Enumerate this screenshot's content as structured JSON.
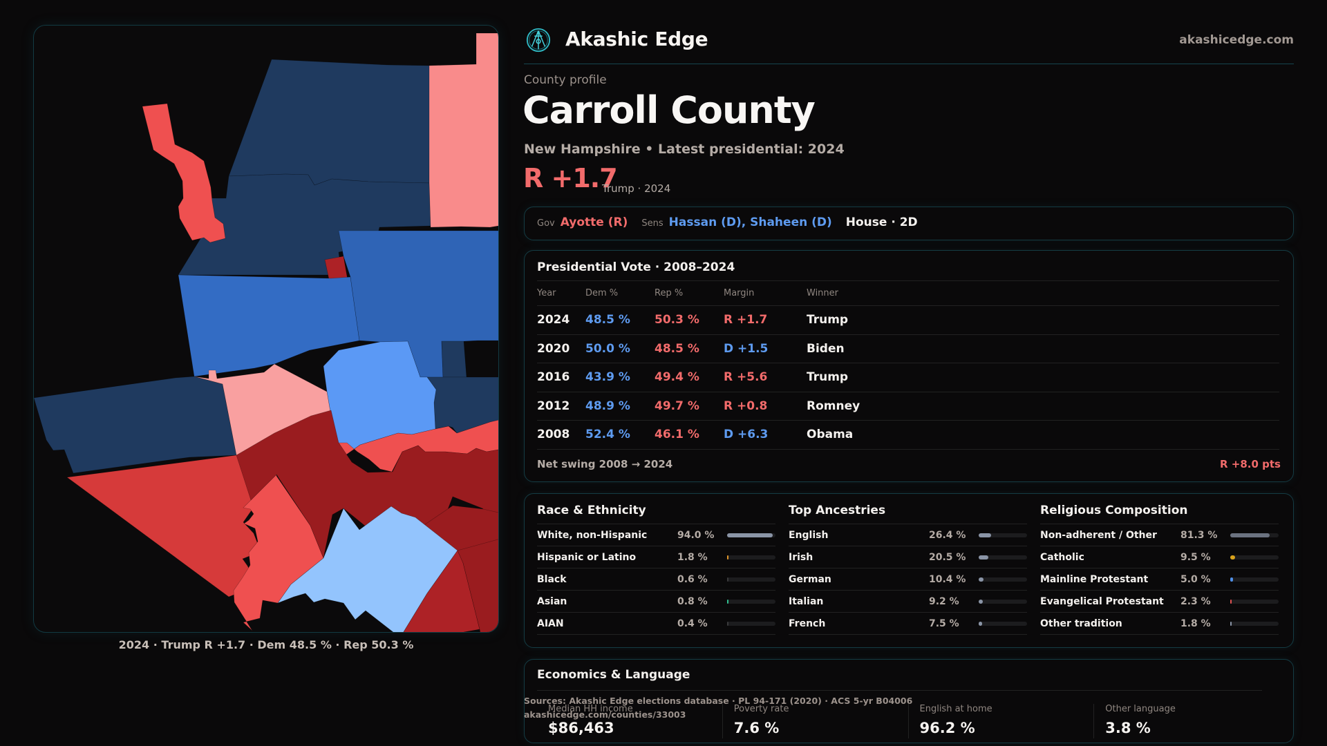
{
  "brand": {
    "name": "Akashic Edge",
    "site": "akashicedge.com",
    "logo_icon": "compass-seal-icon"
  },
  "profile": {
    "eyebrow": "County profile",
    "county": "Carroll County",
    "subtitle": "New Hampshire • Latest presidential: 2024",
    "margin": "R +1.7",
    "margin_note": "Trump · 2024"
  },
  "officials": {
    "gov_label": "Gov",
    "gov_value": "Ayotte (R)",
    "sens_label": "Sens",
    "sens_value": "Hassan (D), Shaheen (D)",
    "house_value": "House · 2D"
  },
  "presidential": {
    "title": "Presidential Vote · 2008–2024",
    "columns": [
      "Year",
      "Dem %",
      "Rep %",
      "Margin",
      "Winner"
    ],
    "rows": [
      {
        "year": "2024",
        "dem": "48.5 %",
        "rep": "50.3 %",
        "margin": "R +1.7",
        "party": "R",
        "winner": "Trump"
      },
      {
        "year": "2020",
        "dem": "50.0 %",
        "rep": "48.5 %",
        "margin": "D +1.5",
        "party": "D",
        "winner": "Biden"
      },
      {
        "year": "2016",
        "dem": "43.9 %",
        "rep": "49.4 %",
        "margin": "R +5.6",
        "party": "R",
        "winner": "Trump"
      },
      {
        "year": "2012",
        "dem": "48.9 %",
        "rep": "49.7 %",
        "margin": "R +0.8",
        "party": "R",
        "winner": "Romney"
      },
      {
        "year": "2008",
        "dem": "52.4 %",
        "rep": "46.1 %",
        "margin": "D +6.3",
        "party": "D",
        "winner": "Obama"
      }
    ],
    "net_swing_label": "Net swing 2008 → 2024",
    "net_swing_value": "R +8.0 pts"
  },
  "demographics": {
    "race": {
      "title": "Race & Ethnicity",
      "rows": [
        {
          "name": "White, non-Hispanic",
          "pct": "94.0 %",
          "value": 94.0,
          "color": "#8a94a6"
        },
        {
          "name": "Hispanic or Latino",
          "pct": "1.8 %",
          "value": 1.8,
          "color": "#e0962a"
        },
        {
          "name": "Black",
          "pct": "0.6 %",
          "value": 0.6,
          "color": "#3a3a3c"
        },
        {
          "name": "Asian",
          "pct": "0.8 %",
          "value": 0.8,
          "color": "#2fbf8f"
        },
        {
          "name": "AIAN",
          "pct": "0.4 %",
          "value": 0.4,
          "color": "#3a3a3c"
        }
      ]
    },
    "ancestry": {
      "title": "Top Ancestries",
      "rows": [
        {
          "name": "English",
          "pct": "26.4 %",
          "value": 26.4,
          "color": "#8a94a6"
        },
        {
          "name": "Irish",
          "pct": "20.5 %",
          "value": 20.5,
          "color": "#8a94a6"
        },
        {
          "name": "German",
          "pct": "10.4 %",
          "value": 10.4,
          "color": "#8a94a6"
        },
        {
          "name": "Italian",
          "pct": "9.2 %",
          "value": 9.2,
          "color": "#8a94a6"
        },
        {
          "name": "French",
          "pct": "7.5 %",
          "value": 7.5,
          "color": "#8a94a6"
        }
      ]
    },
    "religion": {
      "title": "Religious Composition",
      "rows": [
        {
          "name": "Non-adherent / Other",
          "pct": "81.3 %",
          "value": 81.3,
          "color": "#6b7280"
        },
        {
          "name": "Catholic",
          "pct": "9.5 %",
          "value": 9.5,
          "color": "#d9a21b"
        },
        {
          "name": "Mainline Protestant",
          "pct": "5.0 %",
          "value": 5.0,
          "color": "#4f8fe6"
        },
        {
          "name": "Evangelical Protestant",
          "pct": "2.3 %",
          "value": 2.3,
          "color": "#e05252"
        },
        {
          "name": "Other tradition",
          "pct": "1.8 %",
          "value": 1.8,
          "color": "#8a94a6"
        }
      ]
    }
  },
  "economics": {
    "title": "Economics & Language",
    "stats": [
      {
        "label": "Median HH income",
        "value": "$86,463"
      },
      {
        "label": "Poverty rate",
        "value": "7.6 %"
      },
      {
        "label": "English at home",
        "value": "96.2 %"
      },
      {
        "label": "Other language",
        "value": "3.8 %"
      }
    ]
  },
  "sources": {
    "line1": "Sources: Akashic Edge elections database · PL 94-171 (2020) · ACS 5-yr B04006",
    "line2": "akashicedge.com/counties/33003"
  },
  "map": {
    "caption": "2024 · Trump R +1.7 · Dem 48.5 % · Rep 50.3 %",
    "colors": {
      "dem_strong": "#1f3a5f",
      "dem_mid": "#336cc4",
      "dem_mid2": "#2f64b6",
      "dem_light": "#5b99f5",
      "dem_pale": "#93c4fd",
      "rep_pale": "#f98b8b",
      "rep_pale2": "#f9a0a0",
      "rep_light": "#ef5050",
      "rep_mid": "#d63a3a",
      "rep_strong": "#9a1c1f",
      "rep_strong2": "#ad2226"
    },
    "towns": [
      {
        "id": "town-nw-strip",
        "fill": "rep_light"
      },
      {
        "id": "town-north-top",
        "fill": "dem_strong"
      },
      {
        "id": "town-north-mid",
        "fill": "dem_strong"
      },
      {
        "id": "town-ne-strip",
        "fill": "rep_pale"
      },
      {
        "id": "town-small-enclave",
        "fill": "rep_strong2"
      },
      {
        "id": "town-center-west",
        "fill": "dem_mid"
      },
      {
        "id": "town-center-east",
        "fill": "dem_mid2"
      },
      {
        "id": "town-notch",
        "fill": "dem_strong"
      },
      {
        "id": "town-east-mid",
        "fill": "dem_strong"
      },
      {
        "id": "town-center",
        "fill": "dem_light"
      },
      {
        "id": "town-west",
        "fill": "dem_strong"
      },
      {
        "id": "town-center-south",
        "fill": "rep_pale2"
      },
      {
        "id": "town-east-band",
        "fill": "rep_light"
      },
      {
        "id": "town-sw-large",
        "fill": "rep_mid"
      },
      {
        "id": "town-south-center",
        "fill": "rep_light"
      },
      {
        "id": "town-se-large",
        "fill": "rep_strong"
      },
      {
        "id": "town-east-lower",
        "fill": "rep_strong"
      },
      {
        "id": "town-south-pale",
        "fill": "dem_pale"
      },
      {
        "id": "town-south-strip",
        "fill": "rep_strong2"
      },
      {
        "id": "town-se-corner",
        "fill": "rep_strong"
      }
    ]
  }
}
